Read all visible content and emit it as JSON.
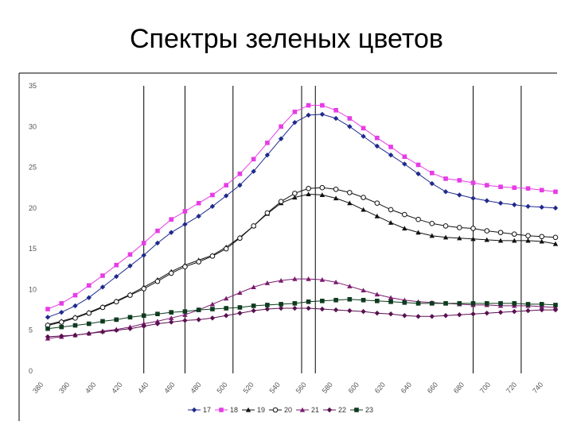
{
  "title": "Спектры зеленых цветов",
  "chart_data": {
    "type": "line",
    "title": "",
    "xlabel": "",
    "ylabel": "",
    "x": [
      380,
      390,
      400,
      410,
      420,
      430,
      440,
      450,
      460,
      470,
      480,
      490,
      500,
      510,
      520,
      530,
      540,
      550,
      560,
      570,
      580,
      590,
      600,
      610,
      620,
      630,
      640,
      650,
      660,
      670,
      680,
      690,
      700,
      710,
      720,
      730,
      740,
      750
    ],
    "x_ticks": [
      "380",
      "390",
      "400",
      "420",
      "440",
      "460",
      "480",
      "500",
      "520",
      "540",
      "560",
      "580",
      "600",
      "620",
      "640",
      "660",
      "680",
      "700",
      "720",
      "740"
    ],
    "y_ticks": [
      "0",
      "5",
      "10",
      "15",
      "20",
      "25",
      "30",
      "35"
    ],
    "ylim": [
      0,
      35
    ],
    "grid": false,
    "legend_position": "bottom",
    "vertical_lines": [
      450,
      480,
      515,
      565,
      575,
      690,
      725
    ],
    "series": [
      {
        "name": "17",
        "color": "#1f2a8c",
        "marker": "diamond-filled",
        "values": [
          6.6,
          7.2,
          8.0,
          9.0,
          10.3,
          11.6,
          12.9,
          14.2,
          15.7,
          17.0,
          18.0,
          19.0,
          20.2,
          21.5,
          22.8,
          24.5,
          26.5,
          28.5,
          30.5,
          31.4,
          31.5,
          31.0,
          30.0,
          28.8,
          27.6,
          26.5,
          25.4,
          24.2,
          23.0,
          22.0,
          21.6,
          21.2,
          20.9,
          20.6,
          20.4,
          20.2,
          20.1,
          20.0
        ]
      },
      {
        "name": "18",
        "color": "#e63ce6",
        "marker": "square-filled",
        "values": [
          7.6,
          8.3,
          9.3,
          10.5,
          11.7,
          13.0,
          14.3,
          15.7,
          17.2,
          18.6,
          19.6,
          20.6,
          21.6,
          22.8,
          24.2,
          26.0,
          28.0,
          30.0,
          31.8,
          32.6,
          32.6,
          32.0,
          31.0,
          29.8,
          28.6,
          27.5,
          26.3,
          25.3,
          24.3,
          23.6,
          23.4,
          23.1,
          22.8,
          22.6,
          22.5,
          22.4,
          22.2,
          22.0
        ]
      },
      {
        "name": "19",
        "color": "#111111",
        "marker": "triangle-filled",
        "values": [
          5.7,
          6.1,
          6.6,
          7.2,
          7.9,
          8.6,
          9.4,
          10.3,
          11.2,
          12.2,
          13.0,
          13.6,
          14.2,
          15.2,
          16.4,
          17.8,
          19.3,
          20.6,
          21.3,
          21.7,
          21.6,
          21.2,
          20.6,
          19.8,
          19.0,
          18.2,
          17.5,
          17.0,
          16.6,
          16.4,
          16.3,
          16.2,
          16.1,
          16.0,
          16.0,
          16.0,
          15.9,
          15.6
        ]
      },
      {
        "name": "20",
        "color": "#111111",
        "marker": "circle-open",
        "values": [
          5.6,
          6.0,
          6.5,
          7.1,
          7.8,
          8.5,
          9.3,
          10.1,
          11.0,
          12.0,
          12.8,
          13.4,
          14.1,
          15.0,
          16.3,
          17.8,
          19.4,
          20.8,
          21.8,
          22.4,
          22.5,
          22.3,
          21.9,
          21.3,
          20.6,
          19.8,
          19.2,
          18.6,
          18.1,
          17.8,
          17.6,
          17.5,
          17.2,
          17.0,
          16.8,
          16.6,
          16.5,
          16.4
        ]
      },
      {
        "name": "21",
        "color": "#7a1a6e",
        "marker": "triangle-filled",
        "values": [
          4.0,
          4.2,
          4.4,
          4.6,
          4.9,
          5.1,
          5.4,
          5.8,
          6.1,
          6.5,
          6.9,
          7.5,
          8.2,
          8.9,
          9.6,
          10.3,
          10.8,
          11.1,
          11.3,
          11.3,
          11.2,
          10.9,
          10.4,
          9.9,
          9.4,
          9.0,
          8.7,
          8.5,
          8.4,
          8.3,
          8.2,
          8.1,
          8.1,
          8.0,
          8.0,
          8.0,
          7.9,
          7.8
        ]
      },
      {
        "name": "22",
        "color": "#5a1050",
        "marker": "diamond-filled",
        "values": [
          4.2,
          4.3,
          4.4,
          4.6,
          4.8,
          5.0,
          5.2,
          5.5,
          5.8,
          6.0,
          6.2,
          6.3,
          6.5,
          6.8,
          7.1,
          7.4,
          7.6,
          7.7,
          7.7,
          7.7,
          7.6,
          7.5,
          7.4,
          7.3,
          7.1,
          7.0,
          6.8,
          6.7,
          6.7,
          6.8,
          6.9,
          7.0,
          7.1,
          7.2,
          7.3,
          7.4,
          7.5,
          7.5
        ]
      },
      {
        "name": "23",
        "color": "#0d3b1e",
        "marker": "square-filled",
        "values": [
          5.2,
          5.4,
          5.6,
          5.8,
          6.1,
          6.3,
          6.6,
          6.8,
          7.0,
          7.2,
          7.3,
          7.5,
          7.6,
          7.7,
          7.8,
          8.0,
          8.1,
          8.2,
          8.3,
          8.5,
          8.6,
          8.7,
          8.8,
          8.7,
          8.6,
          8.5,
          8.4,
          8.3,
          8.3,
          8.3,
          8.3,
          8.3,
          8.3,
          8.3,
          8.3,
          8.2,
          8.2,
          8.1
        ]
      }
    ]
  }
}
